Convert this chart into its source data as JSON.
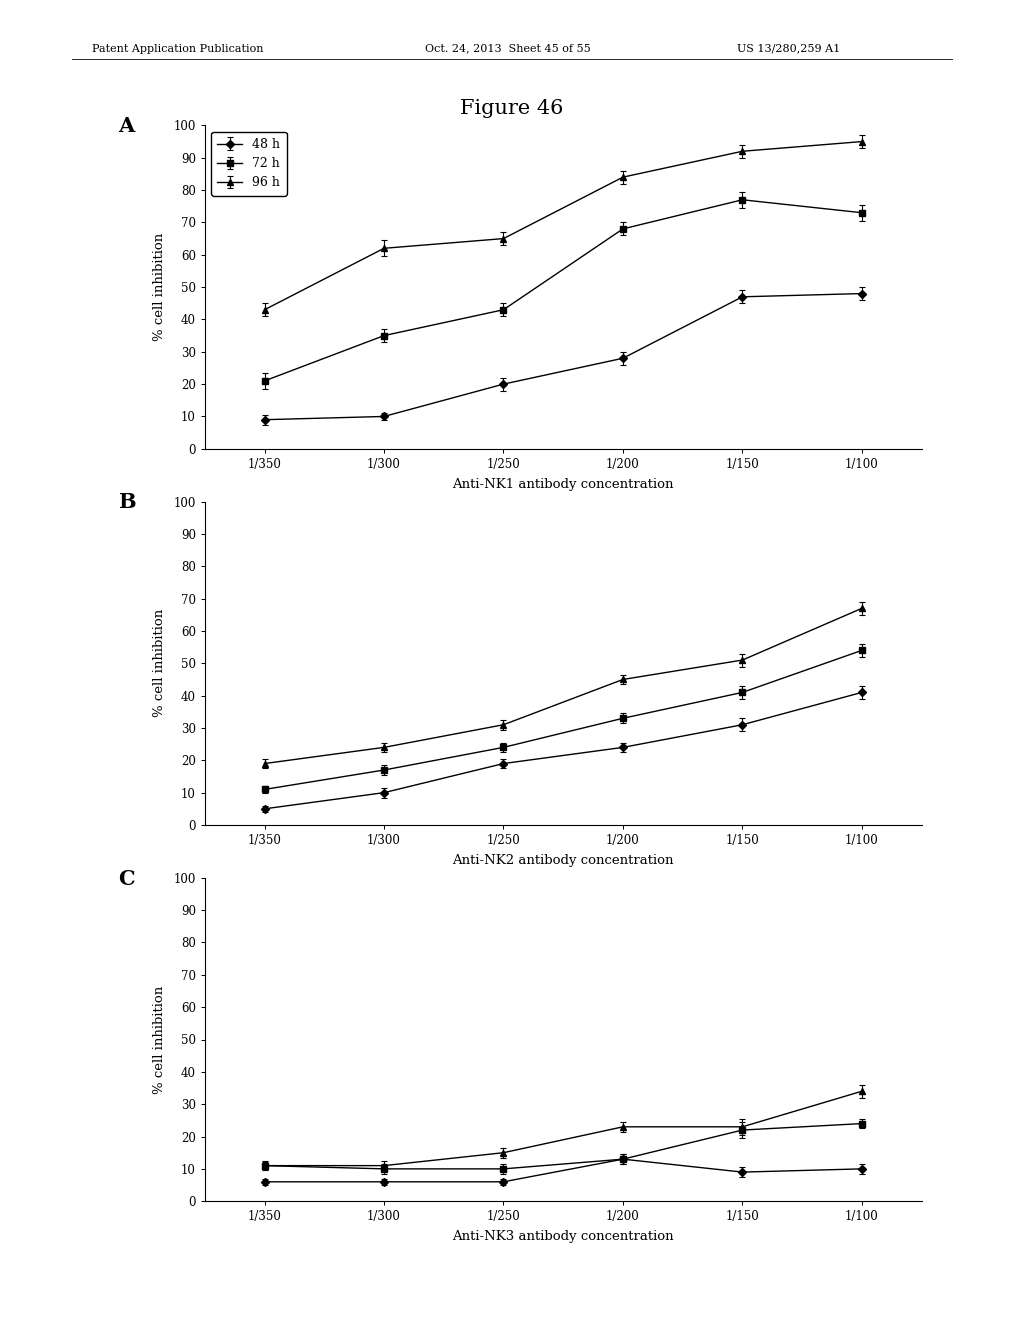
{
  "title": "Figure 46",
  "header_left": "Patent Application Publication",
  "header_mid": "Oct. 24, 2013  Sheet 45 of 55",
  "header_right": "US 13/280,259 A1",
  "x_labels": [
    "1/350",
    "1/300",
    "1/250",
    "1/200",
    "1/150",
    "1/100"
  ],
  "x_positions": [
    0,
    1,
    2,
    3,
    4,
    5
  ],
  "panel_A": {
    "label": "A",
    "xlabel": "Anti-NK1 antibody concentration",
    "ylabel": "% cell inhibition",
    "ylim": [
      0,
      100
    ],
    "yticks": [
      0,
      10,
      20,
      30,
      40,
      50,
      60,
      70,
      80,
      90,
      100
    ],
    "series": [
      {
        "label": "48 h",
        "marker": "D",
        "y": [
          9,
          10,
          20,
          28,
          47,
          48
        ],
        "yerr": [
          1.5,
          1.2,
          2.0,
          2.0,
          2.0,
          2.0
        ]
      },
      {
        "label": "72 h",
        "marker": "s",
        "y": [
          21,
          35,
          43,
          68,
          77,
          73
        ],
        "yerr": [
          2.5,
          2.0,
          2.0,
          2.0,
          2.5,
          2.5
        ]
      },
      {
        "label": "96 h",
        "marker": "^",
        "y": [
          43,
          62,
          65,
          84,
          92,
          95
        ],
        "yerr": [
          2.0,
          2.5,
          2.0,
          2.0,
          2.0,
          2.0
        ]
      }
    ]
  },
  "panel_B": {
    "label": "B",
    "xlabel": "Anti-NK2 antibody concentration",
    "ylabel": "% cell inhibition",
    "ylim": [
      0,
      100
    ],
    "yticks": [
      0,
      10,
      20,
      30,
      40,
      50,
      60,
      70,
      80,
      90,
      100
    ],
    "series": [
      {
        "label": "48 h",
        "marker": "D",
        "y": [
          5,
          10,
          19,
          24,
          31,
          41
        ],
        "yerr": [
          1.0,
          1.5,
          1.5,
          1.5,
          2.0,
          2.0
        ]
      },
      {
        "label": "72 h",
        "marker": "s",
        "y": [
          11,
          17,
          24,
          33,
          41,
          54
        ],
        "yerr": [
          1.0,
          1.5,
          1.5,
          1.5,
          2.0,
          2.0
        ]
      },
      {
        "label": "96 h",
        "marker": "^",
        "y": [
          19,
          24,
          31,
          45,
          51,
          67
        ],
        "yerr": [
          1.5,
          1.5,
          1.5,
          1.5,
          2.0,
          2.0
        ]
      }
    ]
  },
  "panel_C": {
    "label": "C",
    "xlabel": "Anti-NK3 antibody concentration",
    "ylabel": "% cell inhibition",
    "ylim": [
      0,
      100
    ],
    "yticks": [
      0,
      10,
      20,
      30,
      40,
      50,
      60,
      70,
      80,
      90,
      100
    ],
    "series": [
      {
        "label": "48 h",
        "marker": "D",
        "y": [
          6,
          6,
          6,
          13,
          9,
          10
        ],
        "yerr": [
          1.0,
          1.0,
          1.0,
          1.5,
          1.5,
          1.5
        ]
      },
      {
        "label": "72 h",
        "marker": "s",
        "y": [
          11,
          10,
          10,
          13,
          22,
          24
        ],
        "yerr": [
          1.0,
          1.5,
          1.5,
          1.5,
          2.5,
          1.5
        ]
      },
      {
        "label": "96 h",
        "marker": "^",
        "y": [
          11,
          11,
          15,
          23,
          23,
          34
        ],
        "yerr": [
          1.5,
          1.5,
          1.5,
          1.5,
          2.5,
          2.0
        ]
      }
    ]
  },
  "line_color": "#000000",
  "bg_color": "#ffffff"
}
